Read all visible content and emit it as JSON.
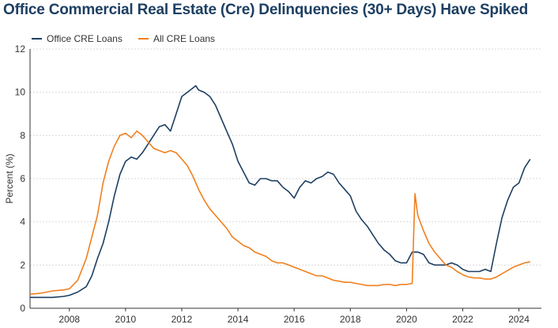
{
  "title": "Office Commercial Real Estate (Cre) Delinquencies (30+ Days) Have Spiked",
  "chart_data": {
    "type": "line",
    "title": "Office Commercial Real Estate (Cre) Delinquencies (30+ Days) Have Spiked",
    "xlabel": "",
    "ylabel": "Percent (%)",
    "xlim": [
      2006.6,
      2024.8
    ],
    "ylim": [
      0,
      12
    ],
    "x_ticks": [
      2008,
      2010,
      2012,
      2014,
      2016,
      2018,
      2020,
      2022,
      2024
    ],
    "y_ticks": [
      0,
      2,
      4,
      6,
      8,
      10,
      12
    ],
    "grid": "horizontal",
    "legend_position": "top-left",
    "series": [
      {
        "name": "Office CRE Loans",
        "color": "#1d3f62",
        "x": [
          2006.6,
          2007.0,
          2007.4,
          2007.8,
          2008.0,
          2008.3,
          2008.6,
          2008.8,
          2009.0,
          2009.2,
          2009.4,
          2009.6,
          2009.8,
          2010.0,
          2010.2,
          2010.4,
          2010.6,
          2010.8,
          2011.0,
          2011.2,
          2011.4,
          2011.6,
          2011.8,
          2012.0,
          2012.2,
          2012.4,
          2012.5,
          2012.6,
          2012.8,
          2013.0,
          2013.2,
          2013.4,
          2013.6,
          2013.8,
          2014.0,
          2014.2,
          2014.4,
          2014.6,
          2014.8,
          2015.0,
          2015.2,
          2015.4,
          2015.6,
          2015.8,
          2016.0,
          2016.2,
          2016.4,
          2016.6,
          2016.8,
          2017.0,
          2017.2,
          2017.4,
          2017.6,
          2017.8,
          2018.0,
          2018.2,
          2018.4,
          2018.6,
          2018.8,
          2019.0,
          2019.2,
          2019.4,
          2019.6,
          2019.8,
          2020.0,
          2020.2,
          2020.4,
          2020.6,
          2020.8,
          2021.0,
          2021.2,
          2021.4,
          2021.6,
          2021.8,
          2022.0,
          2022.2,
          2022.4,
          2022.6,
          2022.8,
          2023.0,
          2023.2,
          2023.4,
          2023.6,
          2023.8,
          2024.0,
          2024.2,
          2024.4
        ],
        "values": [
          0.5,
          0.5,
          0.5,
          0.55,
          0.6,
          0.75,
          1.0,
          1.5,
          2.3,
          3.0,
          4.0,
          5.2,
          6.2,
          6.8,
          7.0,
          6.9,
          7.2,
          7.6,
          8.0,
          8.4,
          8.5,
          8.2,
          9.0,
          9.8,
          10.0,
          10.2,
          10.3,
          10.1,
          10.0,
          9.8,
          9.4,
          8.8,
          8.2,
          7.6,
          6.8,
          6.3,
          5.8,
          5.7,
          6.0,
          6.0,
          5.9,
          5.9,
          5.6,
          5.4,
          5.1,
          5.6,
          5.9,
          5.8,
          6.0,
          6.1,
          6.3,
          6.2,
          5.8,
          5.5,
          5.2,
          4.5,
          4.1,
          3.8,
          3.4,
          3.0,
          2.7,
          2.5,
          2.2,
          2.1,
          2.1,
          2.6,
          2.6,
          2.5,
          2.1,
          2.0,
          2.0,
          2.0,
          2.1,
          2.0,
          1.8,
          1.7,
          1.7,
          1.7,
          1.8,
          1.7,
          3.0,
          4.2,
          5.0,
          5.6,
          5.8,
          6.5,
          6.9
        ]
      },
      {
        "name": "All CRE Loans",
        "color": "#f0801e",
        "x": [
          2006.6,
          2007.0,
          2007.4,
          2007.8,
          2008.0,
          2008.3,
          2008.6,
          2008.8,
          2009.0,
          2009.2,
          2009.4,
          2009.6,
          2009.8,
          2010.0,
          2010.2,
          2010.4,
          2010.6,
          2010.8,
          2011.0,
          2011.2,
          2011.4,
          2011.6,
          2011.8,
          2012.0,
          2012.2,
          2012.4,
          2012.6,
          2012.8,
          2013.0,
          2013.2,
          2013.4,
          2013.6,
          2013.8,
          2014.0,
          2014.2,
          2014.4,
          2014.6,
          2014.8,
          2015.0,
          2015.2,
          2015.4,
          2015.6,
          2015.8,
          2016.0,
          2016.2,
          2016.4,
          2016.6,
          2016.8,
          2017.0,
          2017.2,
          2017.4,
          2017.6,
          2017.8,
          2018.0,
          2018.2,
          2018.4,
          2018.6,
          2018.8,
          2019.0,
          2019.2,
          2019.4,
          2019.6,
          2019.8,
          2020.0,
          2020.2,
          2020.3,
          2020.4,
          2020.6,
          2020.8,
          2021.0,
          2021.2,
          2021.4,
          2021.6,
          2021.8,
          2022.0,
          2022.2,
          2022.4,
          2022.6,
          2022.8,
          2023.0,
          2023.2,
          2023.4,
          2023.6,
          2023.8,
          2024.0,
          2024.2,
          2024.4
        ],
        "values": [
          0.65,
          0.7,
          0.8,
          0.85,
          0.9,
          1.3,
          2.3,
          3.3,
          4.3,
          5.8,
          6.8,
          7.5,
          8.0,
          8.1,
          7.9,
          8.2,
          8.0,
          7.7,
          7.4,
          7.3,
          7.2,
          7.3,
          7.2,
          6.9,
          6.6,
          6.1,
          5.5,
          5.0,
          4.6,
          4.3,
          4.0,
          3.7,
          3.3,
          3.1,
          2.9,
          2.8,
          2.6,
          2.5,
          2.4,
          2.2,
          2.1,
          2.1,
          2.0,
          1.9,
          1.8,
          1.7,
          1.6,
          1.5,
          1.5,
          1.4,
          1.3,
          1.25,
          1.2,
          1.2,
          1.15,
          1.1,
          1.05,
          1.05,
          1.05,
          1.1,
          1.1,
          1.05,
          1.1,
          1.1,
          1.15,
          5.3,
          4.3,
          3.6,
          3.0,
          2.6,
          2.3,
          2.0,
          1.9,
          1.7,
          1.55,
          1.45,
          1.4,
          1.4,
          1.35,
          1.35,
          1.45,
          1.6,
          1.75,
          1.9,
          2.0,
          2.1,
          2.15
        ]
      }
    ]
  }
}
